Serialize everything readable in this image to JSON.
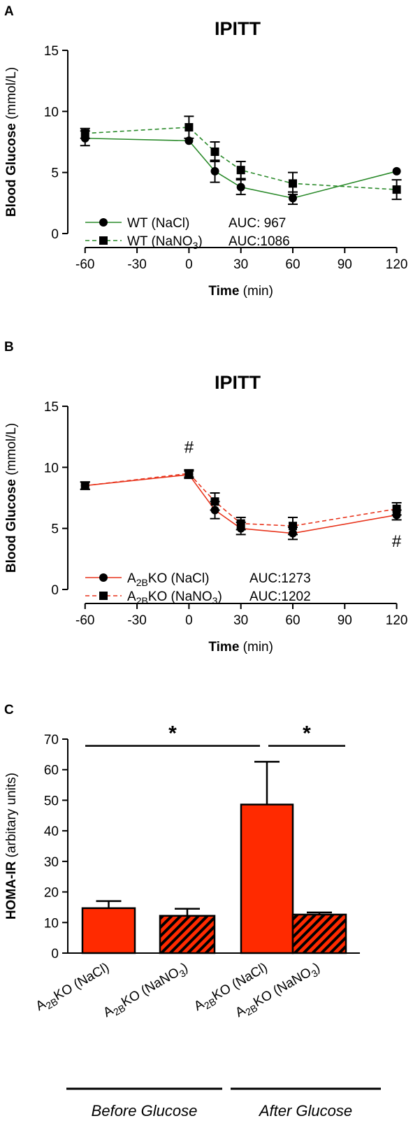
{
  "colors": {
    "wt": "#2a8a2a",
    "ko": "#e8341c",
    "bar": "#ff2a00",
    "black": "#000000"
  },
  "chart_data": [
    {
      "panel": "A",
      "type": "line",
      "title": "IPITT",
      "ylabel": {
        "bold": "Blood Glucose",
        "normal": " (mmol/L)"
      },
      "xlabel": {
        "bold": "Time",
        "normal": " (min)"
      },
      "ylim": [
        0,
        15
      ],
      "xlim": [
        -70,
        125
      ],
      "yticks": [
        0,
        5,
        10,
        15
      ],
      "xticks": [
        -60,
        -30,
        0,
        30,
        60,
        90,
        120
      ],
      "x": [
        -60,
        0,
        15,
        30,
        60,
        120
      ],
      "series": [
        {
          "name_main": "WT (NaCl)",
          "name_sub": "",
          "name_tail": "",
          "auc": "AUC: 967",
          "marker": "circle",
          "dash": false,
          "color": "#2a8a2a",
          "values": [
            7.8,
            7.6,
            5.1,
            3.8,
            2.9,
            5.1
          ],
          "errors": [
            0.6,
            0.0,
            0.9,
            0.6,
            0.5,
            0.0
          ]
        },
        {
          "name_main": "WT (NaNO",
          "name_sub": "3",
          "name_tail": ")",
          "auc": "AUC:1086",
          "marker": "square",
          "dash": true,
          "color": "#2a8a2a",
          "values": [
            8.2,
            8.7,
            6.7,
            5.2,
            4.1,
            3.6
          ],
          "errors": [
            0.4,
            0.9,
            0.8,
            0.7,
            0.9,
            0.8
          ]
        }
      ],
      "annotations": []
    },
    {
      "panel": "B",
      "type": "line",
      "title": "IPITT",
      "ylabel": {
        "bold": "Blood Glucose",
        "normal": " (mmol/L)"
      },
      "xlabel": {
        "bold": "Time",
        "normal": " (min)"
      },
      "ylim": [
        0,
        15
      ],
      "xlim": [
        -70,
        125
      ],
      "yticks": [
        0,
        5,
        10,
        15
      ],
      "xticks": [
        -60,
        -30,
        0,
        30,
        60,
        90,
        120
      ],
      "x": [
        -60,
        0,
        15,
        30,
        60,
        120
      ],
      "series": [
        {
          "name_main": "A",
          "name_sub": "2B",
          "name_tail": "KO (NaCl)",
          "auc": "AUC:1273",
          "marker": "circle",
          "dash": false,
          "color": "#e8341c",
          "values": [
            8.5,
            9.4,
            6.5,
            5.0,
            4.6,
            6.1
          ],
          "errors": [
            0.3,
            0.3,
            0.7,
            0.5,
            0.5,
            0.4
          ]
        },
        {
          "name_main": "A",
          "name_sub": "2B",
          "name_tail": "KO (NaNO",
          "name_sub2": "3",
          "name_tail2": ")",
          "auc": "AUC:1202",
          "marker": "square",
          "dash": true,
          "color": "#e8341c",
          "values": [
            8.5,
            9.5,
            7.2,
            5.4,
            5.2,
            6.6
          ],
          "errors": [
            0.3,
            0.3,
            0.7,
            0.5,
            0.7,
            0.5
          ]
        }
      ],
      "annotations": [
        {
          "text": "#",
          "x": 0,
          "y": 11.2
        },
        {
          "text": "#",
          "x": 120,
          "y": 3.5
        }
      ]
    },
    {
      "panel": "C",
      "type": "bar",
      "ylabel": {
        "bold": "HOMA-IR",
        "normal": " (arbitary units)"
      },
      "ylim": [
        0,
        70
      ],
      "yticks": [
        0,
        10,
        20,
        30,
        40,
        50,
        60,
        70
      ],
      "categories": [
        {
          "main": "A",
          "sub": "2B",
          "tail": "KO (NaCl)",
          "sub2": "",
          "tail2": ""
        },
        {
          "main": "A",
          "sub": "2B",
          "tail": "KO (NaNO",
          "sub2": "3",
          "tail2": ")"
        },
        {
          "main": "A",
          "sub": "2B",
          "tail": "KO (NaCl)",
          "sub2": "",
          "tail2": ""
        },
        {
          "main": "A",
          "sub": "2B",
          "tail": "KO (NaNO",
          "sub2": "3",
          "tail2": ")"
        }
      ],
      "values": [
        14.7,
        12.2,
        48.6,
        12.6
      ],
      "errors": [
        2.3,
        2.3,
        14.0,
        0.7
      ],
      "hatched": [
        false,
        true,
        false,
        true
      ],
      "groups": [
        {
          "label": "Before Glucose",
          "from": 0,
          "to": 1
        },
        {
          "label": "After Glucose",
          "from": 2,
          "to": 3
        }
      ],
      "significance": [
        {
          "from": 0,
          "to": 2,
          "y": 67.8,
          "label": "*"
        },
        {
          "from": 2,
          "to": 3,
          "y": 67.8,
          "label": "*"
        }
      ]
    }
  ]
}
